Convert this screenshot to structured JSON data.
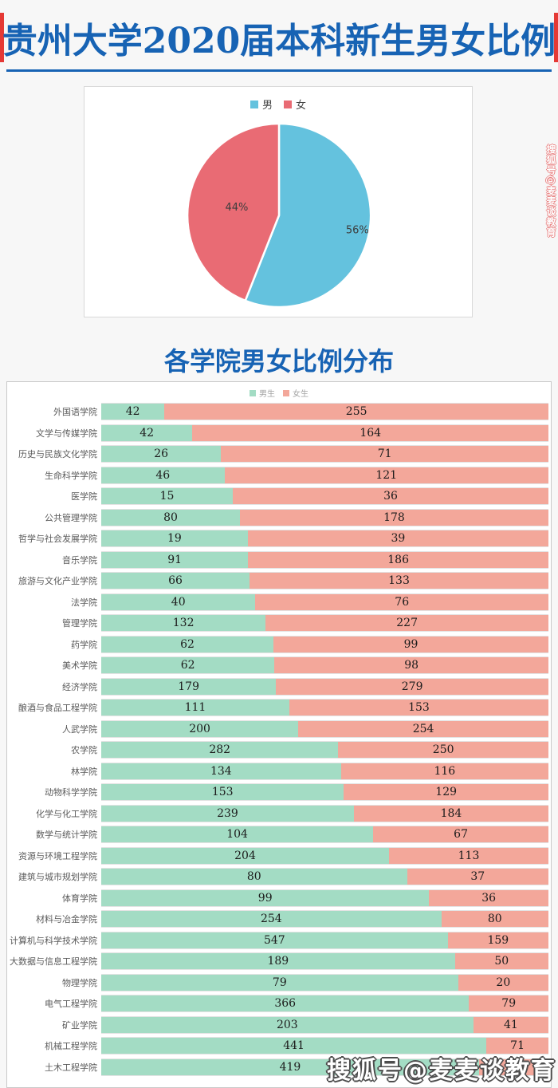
{
  "page": {
    "main_title": "贵州大学2020届本科新生男女比例",
    "section_title": "各学院男女比例分布",
    "watermark": "搜狐号@麦麦谈教育"
  },
  "colors": {
    "title_blue": "#1763b4",
    "accent_red": "#e53935",
    "pie_male_blue": "#64c2de",
    "pie_female_red": "#e96b74",
    "bar_male_green": "#a3dcc4",
    "bar_female_pink": "#f3a79a"
  },
  "chart_data": [
    {
      "type": "pie",
      "legend": [
        "男",
        "女"
      ],
      "legend_position": "top",
      "labels": [
        "男",
        "女"
      ],
      "values": [
        56,
        44
      ],
      "unit": "%",
      "data_labels": [
        "56%",
        "44%"
      ],
      "colors": [
        "#64c2de",
        "#e96b74"
      ]
    },
    {
      "type": "bar",
      "subtype": "horizontal-stacked-100pct",
      "title": "各学院男女比例分布",
      "legend_position": "top",
      "categories": [
        "外国语学院",
        "文学与传媒学院",
        "历史与民族文化学院",
        "生命科学学院",
        "医学院",
        "公共管理学院",
        "哲学与社会发展学院",
        "音乐学院",
        "旅游与文化产业学院",
        "法学院",
        "管理学院",
        "药学院",
        "美术学院",
        "经济学院",
        "酿酒与食品工程学院",
        "人武学院",
        "农学院",
        "林学院",
        "动物科学学院",
        "化学与化工学院",
        "数学与统计学院",
        "资源与环境工程学院",
        "建筑与城市规划学院",
        "体育学院",
        "材料与冶金学院",
        "计算机与科学技术学院",
        "大数据与信息工程学院",
        "物理学院",
        "电气工程学院",
        "矿业学院",
        "机械工程学院",
        "土木工程学院"
      ],
      "series": [
        {
          "name": "男生",
          "color": "#a3dcc4",
          "values": [
            42,
            42,
            26,
            46,
            15,
            80,
            19,
            91,
            66,
            40,
            132,
            62,
            62,
            179,
            111,
            200,
            282,
            134,
            153,
            239,
            104,
            204,
            80,
            99,
            254,
            547,
            189,
            79,
            366,
            203,
            441,
            419
          ]
        },
        {
          "name": "女生",
          "color": "#f3a79a",
          "values": [
            255,
            164,
            71,
            121,
            36,
            178,
            39,
            186,
            133,
            76,
            227,
            99,
            98,
            279,
            153,
            254,
            250,
            116,
            129,
            184,
            67,
            113,
            37,
            36,
            80,
            159,
            50,
            20,
            79,
            41,
            71,
            77
          ]
        }
      ]
    }
  ]
}
